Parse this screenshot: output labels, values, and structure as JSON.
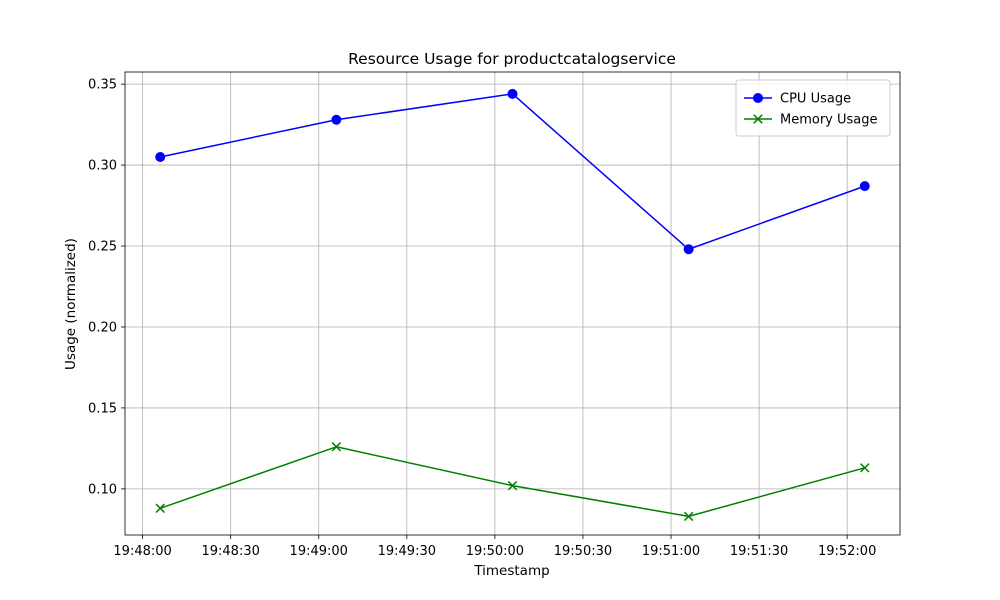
{
  "chart_data": {
    "type": "line",
    "title": "Resource Usage for productcatalogservice",
    "xlabel": "Timestamp",
    "ylabel": "Usage (normalized)",
    "x": [
      "19:48:06",
      "19:49:06",
      "19:50:06",
      "19:51:06",
      "19:52:06"
    ],
    "xlim": [
      "19:47:54",
      "19:52:18"
    ],
    "x_ticks": [
      "19:48:00",
      "19:48:30",
      "19:49:00",
      "19:49:30",
      "19:50:00",
      "19:50:30",
      "19:51:00",
      "19:51:30",
      "19:52:00"
    ],
    "ylim": [
      0.0715,
      0.3575
    ],
    "y_ticks": [
      0.1,
      0.15,
      0.2,
      0.25,
      0.3,
      0.35
    ],
    "grid": true,
    "legend_position": "top-right",
    "series": [
      {
        "name": "CPU Usage",
        "color": "#0000ff",
        "marker": "circle",
        "values": [
          0.305,
          0.328,
          0.344,
          0.248,
          0.287
        ]
      },
      {
        "name": "Memory Usage",
        "color": "#008000",
        "marker": "x",
        "values": [
          0.088,
          0.126,
          0.102,
          0.083,
          0.113
        ]
      }
    ]
  }
}
